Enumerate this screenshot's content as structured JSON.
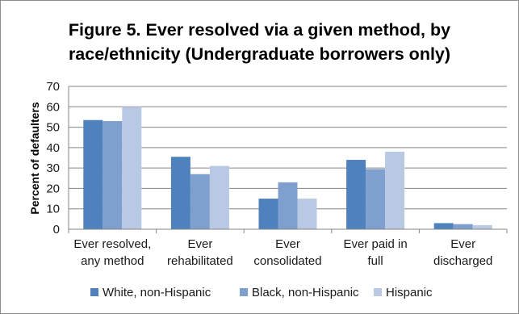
{
  "chart_data": {
    "type": "bar",
    "title_line1": "Figure 5. Ever resolved via a given method, by",
    "title_line2": "race/ethnicity (Undergraduate borrowers only)",
    "xlabel": "",
    "ylabel": "Percent of defaulters",
    "ylim": [
      0,
      70
    ],
    "yticks": [
      0,
      10,
      20,
      30,
      40,
      50,
      60,
      70
    ],
    "grid": true,
    "legend_position": "bottom",
    "categories": [
      [
        "Ever resolved,",
        "any method"
      ],
      [
        "Ever",
        "rehabilitated"
      ],
      [
        "Ever",
        "consolidated"
      ],
      [
        "Ever paid in",
        "full"
      ],
      [
        "Ever",
        "discharged"
      ]
    ],
    "series": [
      {
        "name": "White, non-Hispanic",
        "color": "#4f81bd",
        "values": [
          53.5,
          35.5,
          15,
          34,
          3
        ]
      },
      {
        "name": "Black, non-Hispanic",
        "color": "#7f9fcf",
        "values": [
          53,
          27,
          23,
          29.5,
          2.5
        ]
      },
      {
        "name": "Hispanic",
        "color": "#b9c9e4",
        "values": [
          60,
          31,
          15,
          38,
          2
        ]
      }
    ]
  }
}
